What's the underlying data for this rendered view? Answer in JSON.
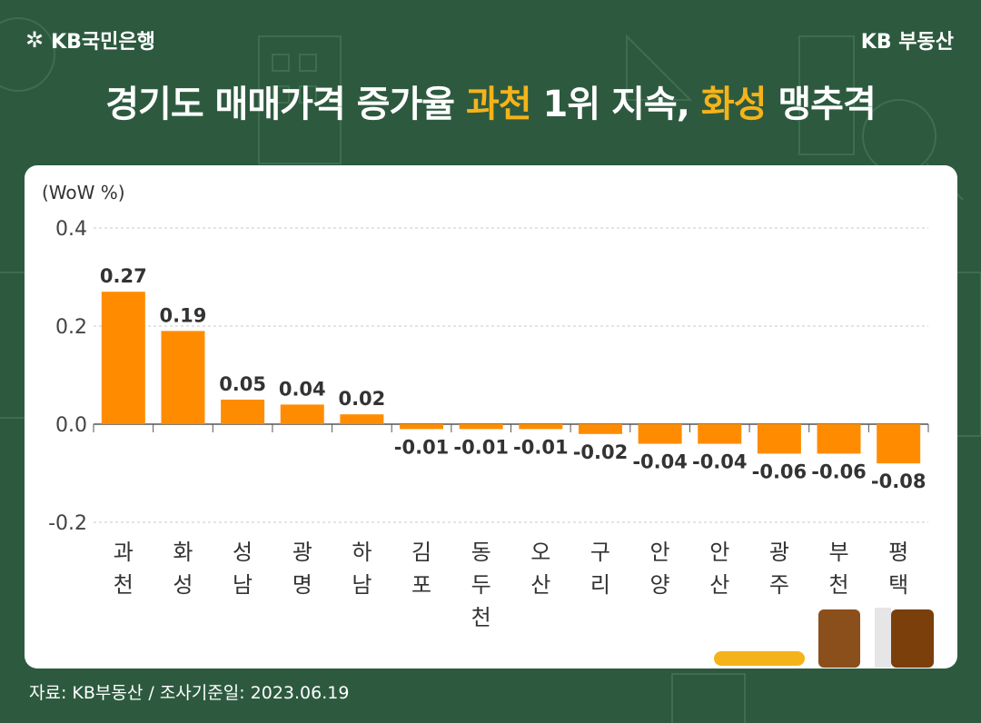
{
  "header": {
    "logo_icon": "kb-star-icon",
    "logo_text": "KB국민은행",
    "brand": "KB 부동산"
  },
  "title": {
    "part1": "경기도 매매가격 증가율 ",
    "highlight1": "과천",
    "part2": " 1위 지속, ",
    "highlight2": "화성",
    "part3": " 맹추격"
  },
  "footer": {
    "source": "자료: KB부동산 / 조사기준일: 2023.06.19"
  },
  "colors": {
    "background": "#2d5a3f",
    "bar": "#ff8c00",
    "highlight": "#f5b31a"
  },
  "chart_data": {
    "type": "bar",
    "unit_label": "(WoW %)",
    "categories": [
      "과천",
      "화성",
      "성남",
      "광명",
      "하남",
      "김포",
      "동두천",
      "오산",
      "구리",
      "안양",
      "안산",
      "광주",
      "부천",
      "평택"
    ],
    "values": [
      0.27,
      0.19,
      0.05,
      0.04,
      0.02,
      -0.01,
      -0.01,
      -0.01,
      -0.02,
      -0.04,
      -0.04,
      -0.06,
      -0.06,
      -0.08
    ],
    "value_labels": [
      "0.27",
      "0.19",
      "0.05",
      "0.04",
      "0.02",
      "-0.01",
      "-0.01",
      "-0.01",
      "-0.02",
      "-0.04",
      "-0.04",
      "-0.06",
      "-0.06",
      "-0.08"
    ],
    "ylim": [
      -0.2,
      0.4
    ],
    "yticks": [
      0.4,
      0.2,
      0.0,
      -0.2
    ],
    "ytick_labels": [
      "0.4",
      "0.2",
      "0.0",
      "-0.2"
    ],
    "grid": true
  }
}
